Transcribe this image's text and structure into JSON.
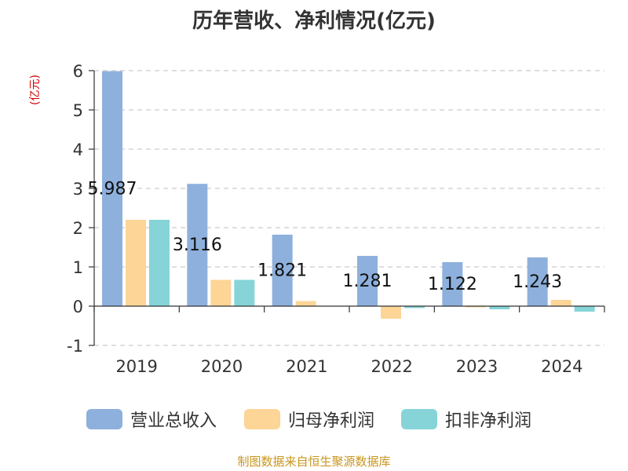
{
  "chart_data": {
    "type": "bar",
    "title": "历年营收、净利情况(亿元)",
    "ylabel": "(亿元)",
    "categories": [
      "2019",
      "2020",
      "2021",
      "2022",
      "2023",
      "2024"
    ],
    "ylim": [
      -1,
      6
    ],
    "yticks": [
      "6",
      "5",
      "4",
      "3",
      "2",
      "1",
      "0",
      "-1"
    ],
    "grid": true,
    "legend_position": "bottom",
    "series": [
      {
        "name": "营业总收入",
        "color": "#8eb0dc",
        "values": [
          5.987,
          3.116,
          1.821,
          1.281,
          1.122,
          1.243
        ],
        "data_labels": [
          "5.987",
          "3.116",
          "1.821",
          "1.281",
          "1.122",
          "1.243"
        ]
      },
      {
        "name": "归母净利润",
        "color": "#fdd597",
        "values": [
          2.2,
          0.67,
          0.13,
          -0.32,
          -0.03,
          0.16
        ]
      },
      {
        "name": "扣非净利润",
        "color": "#86d4d8",
        "values": [
          2.2,
          0.67,
          0.0,
          -0.05,
          -0.08,
          -0.14
        ]
      }
    ]
  },
  "legend": {
    "items": [
      {
        "label": "营业总收入",
        "color": "#8eb0dc"
      },
      {
        "label": "归母净利润",
        "color": "#fdd597"
      },
      {
        "label": "扣非净利润",
        "color": "#86d4d8"
      }
    ]
  },
  "source": "制图数据来自恒生聚源数据库"
}
